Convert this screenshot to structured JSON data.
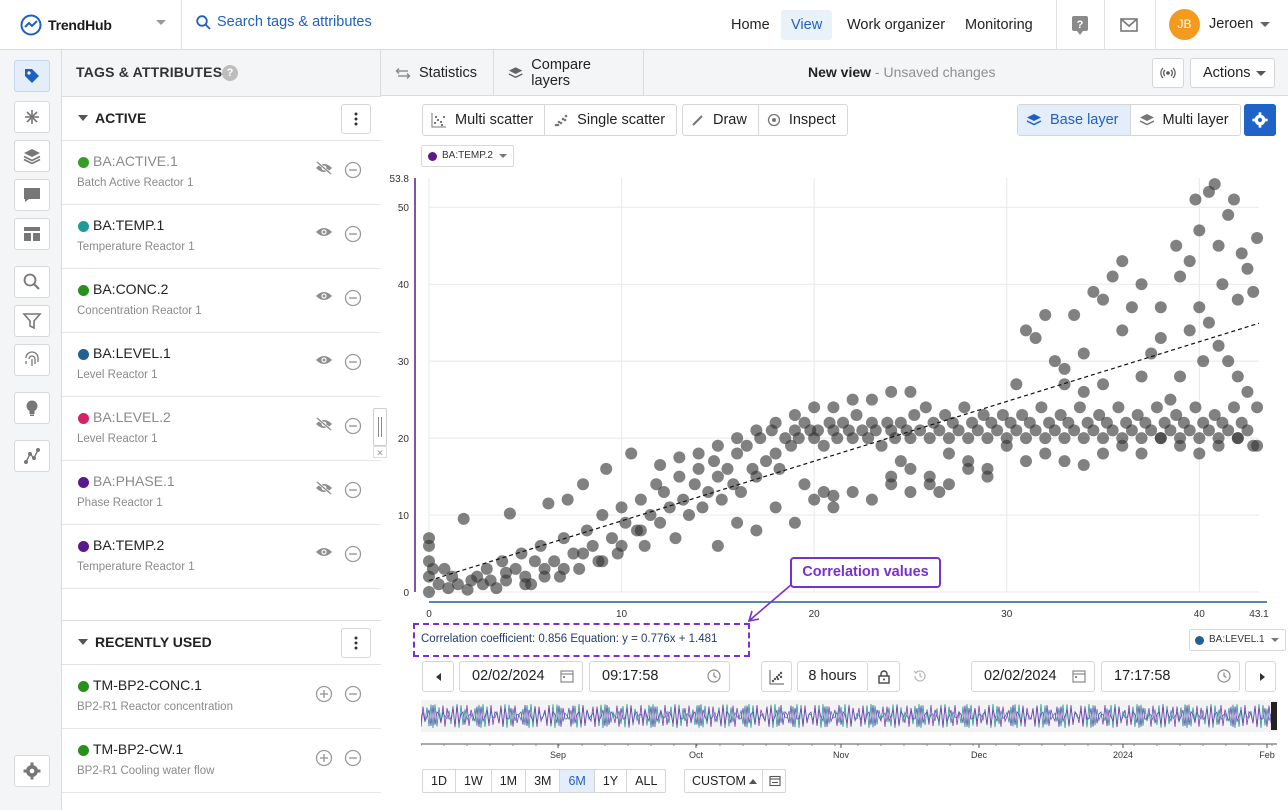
{
  "header": {
    "logo_text": "TrendHub",
    "search_label": "Search tags & attributes",
    "nav": [
      {
        "label": "Home",
        "active": false
      },
      {
        "label": "View",
        "active": true
      },
      {
        "label": "Work organizer",
        "active": false
      },
      {
        "label": "Monitoring",
        "active": false
      }
    ],
    "help_icon": "help-icon",
    "mail_icon": "mail-icon",
    "user": {
      "initials": "JB",
      "name": "Jeroen"
    },
    "colors": {
      "brand": "#1f5fbf",
      "avatar": "#f49b1f"
    }
  },
  "rail": {
    "items": [
      "tag-icon",
      "explore-icon",
      "layers-icon",
      "chat-icon",
      "dashboard-icon",
      "search-icon",
      "filter-icon",
      "fingerprint-icon",
      "lightbulb-icon",
      "network-icon",
      "settings-icon"
    ]
  },
  "panel": {
    "title": "TAGS & ATTRIBUTES",
    "help": "?",
    "active_group": {
      "title": "ACTIVE",
      "tags": [
        {
          "name": "BA:ACTIVE.1",
          "desc": "Batch Active Reactor 1",
          "color": "#3a9a2a",
          "visible": false
        },
        {
          "name": "BA:TEMP.1",
          "desc": "Temperature Reactor 1",
          "color": "#1f9a9a",
          "visible": true
        },
        {
          "name": "BA:CONC.2",
          "desc": "Concentration Reactor 1",
          "color": "#2a8f1f",
          "visible": true
        },
        {
          "name": "BA:LEVEL.1",
          "desc": "Level Reactor 1",
          "color": "#23608f",
          "visible": true
        },
        {
          "name": "BA:LEVEL.2",
          "desc": "Level Reactor 1",
          "color": "#d1226a",
          "visible": false
        },
        {
          "name": "BA:PHASE.1",
          "desc": "Phase Reactor 1",
          "color": "#5a1a8a",
          "visible": false
        },
        {
          "name": "BA:TEMP.2",
          "desc": "Temperature Reactor 1",
          "color": "#5a1a8a",
          "visible": true
        }
      ]
    },
    "recent_group": {
      "title": "RECENTLY USED",
      "tags": [
        {
          "name": "TM-BP2-CONC.1",
          "desc": "BP2-R1 Reactor concentration",
          "color": "#2a8f1f"
        },
        {
          "name": "TM-BP2-CW.1",
          "desc": "BP2-R1 Cooling water flow",
          "color": "#2a8f1f"
        }
      ]
    }
  },
  "toolbar": {
    "statistics": "Statistics",
    "compare_layers": "Compare layers",
    "view_title": "New view",
    "view_status": " - Unsaved changes",
    "actions": "Actions"
  },
  "tools": {
    "multi_scatter": "Multi scatter",
    "single_scatter": "Single scatter",
    "draw": "Draw",
    "inspect": "Inspect",
    "base_layer": "Base layer",
    "multi_layer": "Multi layer"
  },
  "chart_data": {
    "type": "scatter",
    "y_tag": "BA:TEMP.2",
    "y_tag_color": "#5a1a8a",
    "x_tag": "BA:LEVEL.1",
    "x_tag_color": "#23608f",
    "xlim": [
      0,
      43.1
    ],
    "ylim": [
      0,
      53.8
    ],
    "xticks": [
      "0",
      "10",
      "20",
      "30",
      "40",
      "43.1"
    ],
    "yticks": [
      "0",
      "10",
      "20",
      "30",
      "40",
      "50",
      "53.8"
    ],
    "grid": true,
    "trendline": {
      "slope": 0.776,
      "intercept": 1.481
    },
    "point_color": "#333333",
    "points": [
      [
        0,
        0
      ],
      [
        0,
        2
      ],
      [
        0,
        4
      ],
      [
        0,
        6
      ],
      [
        0,
        7
      ],
      [
        0.2,
        3
      ],
      [
        0.5,
        1
      ],
      [
        0.8,
        3
      ],
      [
        1,
        0.5
      ],
      [
        1.2,
        2
      ],
      [
        1.5,
        1
      ],
      [
        1.8,
        9.5
      ],
      [
        2,
        0.3
      ],
      [
        2.2,
        1.5
      ],
      [
        2.5,
        2
      ],
      [
        2.8,
        1
      ],
      [
        3,
        3
      ],
      [
        3.2,
        1.5
      ],
      [
        3.5,
        0.5
      ],
      [
        3.8,
        4
      ],
      [
        4,
        2.5
      ],
      [
        4.2,
        10.2
      ],
      [
        4.5,
        3
      ],
      [
        4.8,
        5
      ],
      [
        5,
        2
      ],
      [
        5.3,
        1
      ],
      [
        5.5,
        4
      ],
      [
        5.8,
        6
      ],
      [
        6,
        3
      ],
      [
        6.2,
        11.5
      ],
      [
        6.5,
        4
      ],
      [
        6.8,
        2
      ],
      [
        7,
        7
      ],
      [
        7.2,
        12
      ],
      [
        7.5,
        5
      ],
      [
        7.8,
        3
      ],
      [
        8,
        14
      ],
      [
        8.2,
        8
      ],
      [
        8.5,
        6
      ],
      [
        8.8,
        4
      ],
      [
        9,
        10
      ],
      [
        9.2,
        16
      ],
      [
        9.5,
        7
      ],
      [
        9.8,
        5
      ],
      [
        10,
        11
      ],
      [
        10.2,
        9
      ],
      [
        10.5,
        18
      ],
      [
        10.8,
        8
      ],
      [
        11,
        12
      ],
      [
        11.2,
        6
      ],
      [
        11.5,
        10
      ],
      [
        11.8,
        14
      ],
      [
        12,
        9
      ],
      [
        12.2,
        13
      ],
      [
        12.5,
        11
      ],
      [
        12.8,
        7
      ],
      [
        13,
        15
      ],
      [
        13.2,
        12
      ],
      [
        13.5,
        10
      ],
      [
        13.8,
        14
      ],
      [
        14,
        16
      ],
      [
        14.2,
        11
      ],
      [
        14.5,
        13
      ],
      [
        14.8,
        17
      ],
      [
        15,
        15
      ],
      [
        15.2,
        12
      ],
      [
        15.5,
        16
      ],
      [
        15.8,
        14
      ],
      [
        16,
        18
      ],
      [
        16.2,
        13
      ],
      [
        16.5,
        19
      ],
      [
        16.8,
        16
      ],
      [
        17,
        15
      ],
      [
        17.2,
        20
      ],
      [
        17.5,
        17
      ],
      [
        17.8,
        21
      ],
      [
        18,
        18
      ],
      [
        18.2,
        16
      ],
      [
        18.5,
        20
      ],
      [
        18.8,
        19
      ],
      [
        19,
        21
      ],
      [
        19.2,
        20
      ],
      [
        19.5,
        22
      ],
      [
        19.8,
        21
      ],
      [
        20,
        20
      ],
      [
        20.2,
        21
      ],
      [
        20.5,
        19
      ],
      [
        20.8,
        22
      ],
      [
        21,
        21
      ],
      [
        21.2,
        20
      ],
      [
        21.5,
        22
      ],
      [
        21.8,
        21
      ],
      [
        22,
        20
      ],
      [
        22.2,
        23
      ],
      [
        22.5,
        21
      ],
      [
        22.8,
        20
      ],
      [
        23,
        22
      ],
      [
        23.2,
        21
      ],
      [
        23.5,
        19
      ],
      [
        23.8,
        22
      ],
      [
        24,
        21
      ],
      [
        24.2,
        20
      ],
      [
        24.5,
        22
      ],
      [
        24.8,
        21
      ],
      [
        25,
        20
      ],
      [
        25.2,
        23
      ],
      [
        25.5,
        21
      ],
      [
        25.8,
        24
      ],
      [
        26,
        20
      ],
      [
        26.2,
        22
      ],
      [
        26.5,
        21
      ],
      [
        26.8,
        23
      ],
      [
        27,
        20
      ],
      [
        27.2,
        22
      ],
      [
        27.5,
        21
      ],
      [
        27.8,
        24
      ],
      [
        28,
        20
      ],
      [
        28.2,
        22
      ],
      [
        28.5,
        21
      ],
      [
        28.8,
        23
      ],
      [
        29,
        20
      ],
      [
        29.2,
        22
      ],
      [
        29.5,
        21
      ],
      [
        29.8,
        23
      ],
      [
        30,
        20
      ],
      [
        30.2,
        22
      ],
      [
        30.5,
        21
      ],
      [
        30.8,
        23
      ],
      [
        31,
        20
      ],
      [
        31.2,
        22
      ],
      [
        31.5,
        21
      ],
      [
        31.8,
        24
      ],
      [
        32,
        20
      ],
      [
        32.2,
        22
      ],
      [
        32.5,
        21
      ],
      [
        32.8,
        23
      ],
      [
        33,
        20
      ],
      [
        33.2,
        22
      ],
      [
        33.5,
        21
      ],
      [
        33.8,
        24
      ],
      [
        34,
        20
      ],
      [
        34.2,
        22
      ],
      [
        34.5,
        21
      ],
      [
        34.8,
        23
      ],
      [
        35,
        20
      ],
      [
        35.2,
        22
      ],
      [
        35.5,
        21
      ],
      [
        35.8,
        24
      ],
      [
        36,
        20
      ],
      [
        36.2,
        22
      ],
      [
        36.5,
        21
      ],
      [
        36.8,
        23
      ],
      [
        37,
        20
      ],
      [
        37.2,
        22
      ],
      [
        37.5,
        21
      ],
      [
        37.8,
        24
      ],
      [
        38,
        20
      ],
      [
        38.2,
        22
      ],
      [
        38.5,
        21
      ],
      [
        38.8,
        23
      ],
      [
        39,
        20
      ],
      [
        39.2,
        22
      ],
      [
        39.5,
        21
      ],
      [
        39.8,
        24
      ],
      [
        40,
        20
      ],
      [
        40.2,
        22
      ],
      [
        40.5,
        21
      ],
      [
        40.8,
        23
      ],
      [
        41,
        20
      ],
      [
        41.2,
        22
      ],
      [
        41.5,
        21
      ],
      [
        41.8,
        24
      ],
      [
        42,
        20
      ],
      [
        42.2,
        22
      ],
      [
        42.5,
        21
      ],
      [
        42.8,
        19
      ],
      [
        30.5,
        27
      ],
      [
        31,
        34
      ],
      [
        31.5,
        33
      ],
      [
        32,
        36
      ],
      [
        32.5,
        30
      ],
      [
        33,
        29
      ],
      [
        33.5,
        36
      ],
      [
        34,
        31
      ],
      [
        34.5,
        39
      ],
      [
        35,
        38
      ],
      [
        35.5,
        41
      ],
      [
        36,
        34
      ],
      [
        36.5,
        37
      ],
      [
        37,
        28
      ],
      [
        37.5,
        31
      ],
      [
        38,
        33
      ],
      [
        38.5,
        25
      ],
      [
        39,
        41
      ],
      [
        39.5,
        43
      ],
      [
        40,
        47
      ],
      [
        40.5,
        52
      ],
      [
        41,
        45
      ],
      [
        41.5,
        49
      ],
      [
        42,
        38
      ],
      [
        42.5,
        42
      ],
      [
        43,
        46
      ],
      [
        40,
        37
      ],
      [
        40.5,
        35
      ],
      [
        41,
        32
      ],
      [
        41.5,
        30
      ],
      [
        42,
        28
      ],
      [
        42.5,
        26
      ],
      [
        43,
        24
      ],
      [
        39,
        28
      ],
      [
        38,
        37
      ],
      [
        37,
        40
      ],
      [
        36,
        43
      ],
      [
        35,
        27
      ],
      [
        34,
        26
      ],
      [
        33,
        27
      ],
      [
        39.5,
        34
      ],
      [
        40.2,
        30
      ],
      [
        41.2,
        40
      ],
      [
        42.2,
        44
      ],
      [
        38.8,
        45
      ],
      [
        39.8,
        51
      ],
      [
        40.8,
        53
      ],
      [
        41.8,
        51
      ],
      [
        42.8,
        39
      ],
      [
        12,
        16.5
      ],
      [
        13,
        17.5
      ],
      [
        14,
        18
      ],
      [
        15,
        19
      ],
      [
        16,
        20
      ],
      [
        17,
        21
      ],
      [
        18,
        22
      ],
      [
        19,
        23
      ],
      [
        20,
        24
      ],
      [
        21,
        24
      ],
      [
        22,
        25
      ],
      [
        23,
        25
      ],
      [
        24,
        26
      ],
      [
        25,
        26
      ],
      [
        19.5,
        14
      ],
      [
        20.5,
        13
      ],
      [
        21,
        12.5
      ],
      [
        24.5,
        17
      ],
      [
        24,
        15
      ],
      [
        25,
        16
      ],
      [
        26,
        14
      ],
      [
        26.5,
        13
      ],
      [
        27,
        18
      ],
      [
        28,
        17
      ],
      [
        29,
        16
      ],
      [
        30,
        19
      ],
      [
        31,
        17
      ],
      [
        32,
        18
      ],
      [
        33,
        17
      ],
      [
        34,
        16.5
      ],
      [
        35,
        18
      ],
      [
        36,
        19
      ],
      [
        37,
        18
      ],
      [
        38,
        20
      ],
      [
        39,
        19
      ],
      [
        40,
        18
      ],
      [
        41,
        19
      ],
      [
        42,
        20
      ],
      [
        43,
        19
      ],
      [
        15,
        6
      ],
      [
        16,
        9
      ],
      [
        17,
        8
      ],
      [
        18,
        11
      ],
      [
        19,
        9
      ],
      [
        20,
        12
      ],
      [
        21,
        11
      ],
      [
        22,
        13
      ],
      [
        23,
        12
      ],
      [
        24,
        14
      ],
      [
        25,
        13
      ],
      [
        26,
        15
      ],
      [
        27,
        14
      ],
      [
        28,
        16
      ],
      [
        29,
        15
      ],
      [
        11,
        8
      ],
      [
        10,
        6
      ],
      [
        9,
        4
      ],
      [
        8,
        5
      ],
      [
        7,
        3
      ],
      [
        6,
        2
      ],
      [
        5,
        1
      ],
      [
        4,
        1.5
      ]
    ]
  },
  "correlation": {
    "callout": "Correlation values",
    "text": "Correlation coefficient: 0.856 Equation: y = 0.776x + 1.481",
    "color": "#7a2fd1"
  },
  "time": {
    "start_date": "02/02/2024",
    "start_time": "09:17:58",
    "span": "8 hours",
    "end_date": "02/02/2024",
    "end_time": "17:17:58",
    "axis_labels": [
      "Sep",
      "Oct",
      "Nov",
      "Dec",
      "2024",
      "Feb"
    ],
    "ranges": [
      {
        "label": "1D",
        "selected": false
      },
      {
        "label": "1W",
        "selected": false
      },
      {
        "label": "1M",
        "selected": false
      },
      {
        "label": "3M",
        "selected": false
      },
      {
        "label": "6M",
        "selected": true
      },
      {
        "label": "1Y",
        "selected": false
      },
      {
        "label": "ALL",
        "selected": false
      }
    ],
    "custom": "CUSTOM"
  }
}
